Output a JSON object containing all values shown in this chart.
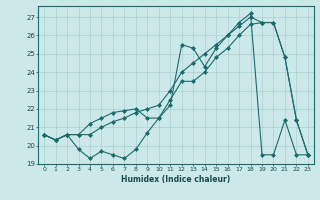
{
  "xlabel": "Humidex (Indice chaleur)",
  "bg_color": "#cce8e8",
  "line_color": "#1a6b6b",
  "grid_color": "#b0d4d4",
  "xlim": [
    -0.5,
    23.5
  ],
  "ylim": [
    19.0,
    27.6
  ],
  "yticks": [
    19,
    20,
    21,
    22,
    23,
    24,
    25,
    26,
    27
  ],
  "xticks": [
    0,
    1,
    2,
    3,
    4,
    5,
    6,
    7,
    8,
    9,
    10,
    11,
    12,
    13,
    14,
    15,
    16,
    17,
    18,
    19,
    20,
    21,
    22,
    23
  ],
  "series1_x": [
    0,
    1,
    2,
    3,
    4,
    5,
    6,
    7,
    8,
    9,
    10,
    11,
    12,
    13,
    14,
    15,
    16,
    17,
    18,
    19,
    20,
    21,
    22,
    23
  ],
  "series1_y": [
    20.6,
    20.3,
    20.6,
    19.8,
    19.3,
    19.7,
    19.5,
    19.3,
    19.8,
    20.7,
    21.5,
    22.2,
    25.5,
    25.3,
    24.3,
    25.3,
    26.0,
    26.7,
    27.2,
    19.5,
    19.5,
    21.4,
    19.5,
    19.5
  ],
  "series2_x": [
    0,
    1,
    2,
    3,
    4,
    5,
    6,
    7,
    8,
    9,
    10,
    11,
    12,
    13,
    14,
    15,
    16,
    17,
    18,
    19,
    20,
    21,
    22,
    23
  ],
  "series2_y": [
    20.6,
    20.3,
    20.6,
    20.6,
    20.6,
    21.0,
    21.3,
    21.5,
    21.8,
    22.0,
    22.2,
    23.0,
    24.0,
    24.5,
    25.0,
    25.5,
    26.0,
    26.5,
    27.0,
    26.7,
    26.7,
    24.8,
    21.4,
    19.5
  ],
  "series3_x": [
    0,
    1,
    2,
    3,
    4,
    5,
    6,
    7,
    8,
    9,
    10,
    11,
    12,
    13,
    14,
    15,
    16,
    17,
    18,
    19,
    20,
    21,
    22,
    23
  ],
  "series3_y": [
    20.6,
    20.3,
    20.6,
    20.6,
    21.2,
    21.5,
    21.8,
    21.9,
    22.0,
    21.5,
    21.5,
    22.5,
    23.5,
    23.5,
    24.0,
    24.8,
    25.3,
    26.0,
    26.6,
    26.7,
    26.7,
    24.8,
    21.4,
    19.5
  ]
}
